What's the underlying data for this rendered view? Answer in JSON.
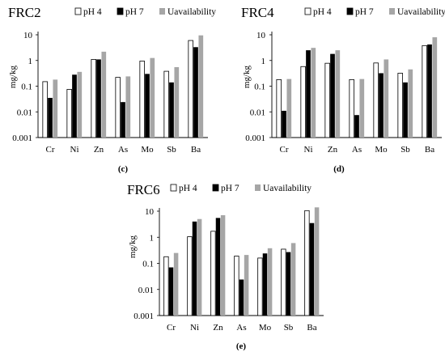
{
  "chart_data": [
    {
      "type": "bar",
      "title": "FRC2",
      "caption": "(c)",
      "ylabel": "mg/kg",
      "yscale": "log",
      "ylim": [
        0.001,
        10
      ],
      "yticks": [
        "0.001",
        "0.01",
        "0.1",
        "1",
        "10"
      ],
      "categories": [
        "Cr",
        "Ni",
        "Zn",
        "As",
        "Mo",
        "Sb",
        "Ba"
      ],
      "legend_position": "top-right",
      "series": [
        {
          "name": "pH 4",
          "values": [
            0.15,
            0.075,
            1.1,
            0.22,
            0.95,
            0.38,
            6.0
          ]
        },
        {
          "name": "pH 7",
          "values": [
            0.035,
            0.28,
            1.1,
            0.024,
            0.3,
            0.14,
            3.3
          ]
        },
        {
          "name": "Uavailability",
          "values": [
            0.18,
            0.36,
            2.2,
            0.24,
            1.25,
            0.55,
            9.5
          ]
        }
      ]
    },
    {
      "type": "bar",
      "title": "FRC4",
      "caption": "(d)",
      "ylabel": "mg/kg",
      "yscale": "log",
      "ylim": [
        0.001,
        10
      ],
      "yticks": [
        "0.001",
        "0.01",
        "0.1",
        "1",
        "10"
      ],
      "categories": [
        "Cr",
        "Ni",
        "Zn",
        "As",
        "Mo",
        "Sb",
        "Ba"
      ],
      "legend_position": "top-right",
      "series": [
        {
          "name": "pH 4",
          "values": [
            0.18,
            0.58,
            0.78,
            0.18,
            0.8,
            0.32,
            3.8
          ]
        },
        {
          "name": "pH 7",
          "values": [
            0.011,
            2.5,
            1.8,
            0.0075,
            0.32,
            0.14,
            4.2
          ]
        },
        {
          "name": "Uavailability",
          "values": [
            0.19,
            3.1,
            2.5,
            0.19,
            1.1,
            0.45,
            8.0
          ]
        }
      ]
    },
    {
      "type": "bar",
      "title": "FRC6",
      "caption": "(e)",
      "ylabel": "mg/kg",
      "yscale": "log",
      "ylim": [
        0.001,
        10
      ],
      "yticks": [
        "0.001",
        "0.01",
        "0.1",
        "1",
        "10"
      ],
      "categories": [
        "Cr",
        "Ni",
        "Zn",
        "As",
        "Mo",
        "Sb",
        "Ba"
      ],
      "legend_position": "top-right",
      "series": [
        {
          "name": "pH 4",
          "values": [
            0.18,
            1.05,
            1.7,
            0.19,
            0.16,
            0.35,
            10.5
          ]
        },
        {
          "name": "pH 7",
          "values": [
            0.07,
            4.0,
            5.5,
            0.024,
            0.24,
            0.27,
            3.5
          ]
        },
        {
          "name": "Uavailability",
          "values": [
            0.25,
            5.0,
            7.0,
            0.21,
            0.38,
            0.6,
            14.0
          ]
        }
      ]
    }
  ],
  "colors": {
    "pH 4": "#ffffff",
    "pH 7": "#000000",
    "Uavailability": "#a6a6a6",
    "axis": "#000000"
  }
}
